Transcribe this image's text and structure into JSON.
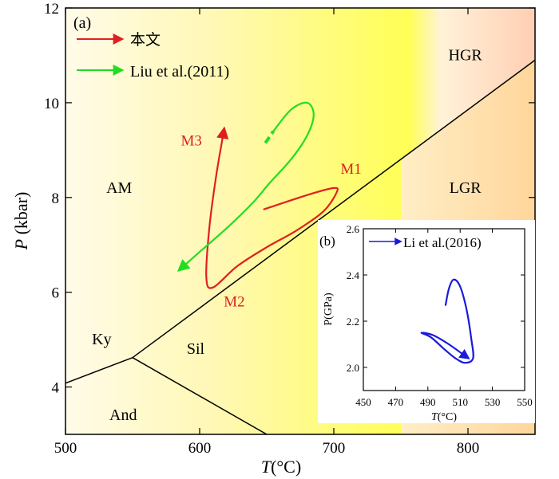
{
  "chart_data": [
    {
      "panel": "(a)",
      "type": "line",
      "xlabel": {
        "symbol": "T",
        "unit": "(°C)"
      },
      "ylabel": {
        "symbol": "P",
        "unit": " (kbar)"
      },
      "xlim": [
        500,
        850
      ],
      "ylim": [
        3,
        12
      ],
      "xticks": [
        "500",
        "600",
        "700",
        "800"
      ],
      "yticks": [
        "4",
        "6",
        "8",
        "10",
        "12"
      ],
      "legend": [
        {
          "label": "本文",
          "color": "#e02020"
        },
        {
          "label": "Liu et al.(2011)",
          "color": "#22dd22"
        }
      ],
      "fields": [
        {
          "label": "AM",
          "at": [
            540,
            8.1
          ]
        },
        {
          "label": "Ky",
          "at": [
            527,
            4.9
          ]
        },
        {
          "label": "Sil",
          "at": [
            597,
            4.7
          ]
        },
        {
          "label": "And",
          "at": [
            543,
            3.3
          ]
        },
        {
          "label": "HGR",
          "at": [
            798,
            10.9
          ]
        },
        {
          "label": "LGR",
          "at": [
            798,
            8.1
          ]
        }
      ],
      "boundaries": [
        {
          "name": "ky-sil",
          "points": [
            [
              500,
              4.08
            ],
            [
              550,
              4.62
            ]
          ]
        },
        {
          "name": "sil-and",
          "points": [
            [
              550,
              4.62
            ],
            [
              650,
              3.0
            ]
          ]
        },
        {
          "name": "ky-and",
          "points": [
            [
              550,
              4.62
            ],
            [
              850,
              10.9
            ]
          ]
        }
      ],
      "series": [
        {
          "name": "本文",
          "color": "#e02020",
          "points": [
            [
              648,
              7.75
            ],
            [
              680,
              8.05
            ],
            [
              700,
              8.2
            ],
            [
              702,
              8.1
            ],
            [
              692,
              7.7
            ],
            [
              672,
              7.3
            ],
            [
              650,
              6.95
            ],
            [
              628,
              6.55
            ],
            [
              610,
              6.1
            ],
            [
              605,
              6.3
            ],
            [
              607,
              7.3
            ],
            [
              612,
              8.4
            ],
            [
              618,
              9.4
            ]
          ],
          "phase_labels": [
            {
              "label": "M1",
              "at": [
                705,
                8.5
              ]
            },
            {
              "label": "M2",
              "at": [
                618,
                5.7
              ]
            },
            {
              "label": "M3",
              "at": [
                586,
                9.1
              ]
            }
          ]
        },
        {
          "name": "Liu et al.(2011)",
          "color": "#22dd22",
          "points": [
            [
              655,
              9.4
            ],
            [
              668,
              9.85
            ],
            [
              680,
              10.0
            ],
            [
              685,
              9.75
            ],
            [
              680,
              9.3
            ],
            [
              668,
              8.8
            ],
            [
              652,
              8.3
            ],
            [
              640,
              7.9
            ],
            [
              622,
              7.4
            ],
            [
              600,
              6.85
            ],
            [
              586,
              6.5
            ]
          ],
          "dashed_start": [
            [
              649,
              9.15
            ],
            [
              655,
              9.4
            ]
          ]
        }
      ]
    },
    {
      "panel": "(b)",
      "type": "line",
      "xlabel": {
        "symbol": "T",
        "unit": "(°C)"
      },
      "ylabel": {
        "symbol": "",
        "unit": "P(GPa)"
      },
      "xlim": [
        450,
        550
      ],
      "ylim": [
        1.9,
        2.6
      ],
      "xticks": [
        "450",
        "470",
        "490",
        "510",
        "530",
        "550"
      ],
      "yticks": [
        "2.0",
        "2.2",
        "2.4",
        "2.6"
      ],
      "legend": [
        {
          "label": "Li et al.(2016)",
          "color": "#1a1adc"
        }
      ],
      "series": [
        {
          "name": "Li et al.(2016)",
          "color": "#1a1adc",
          "points": [
            [
              501,
              2.27
            ],
            [
              503,
              2.34
            ],
            [
              506,
              2.38
            ],
            [
              510,
              2.35
            ],
            [
              514,
              2.25
            ],
            [
              517,
              2.12
            ],
            [
              518,
              2.04
            ],
            [
              513,
              2.02
            ],
            [
              507,
              2.04
            ],
            [
              500,
              2.08
            ],
            [
              492,
              2.13
            ],
            [
              486,
              2.15
            ],
            [
              493,
              2.14
            ],
            [
              503,
              2.1
            ],
            [
              514,
              2.045
            ]
          ]
        }
      ]
    }
  ]
}
